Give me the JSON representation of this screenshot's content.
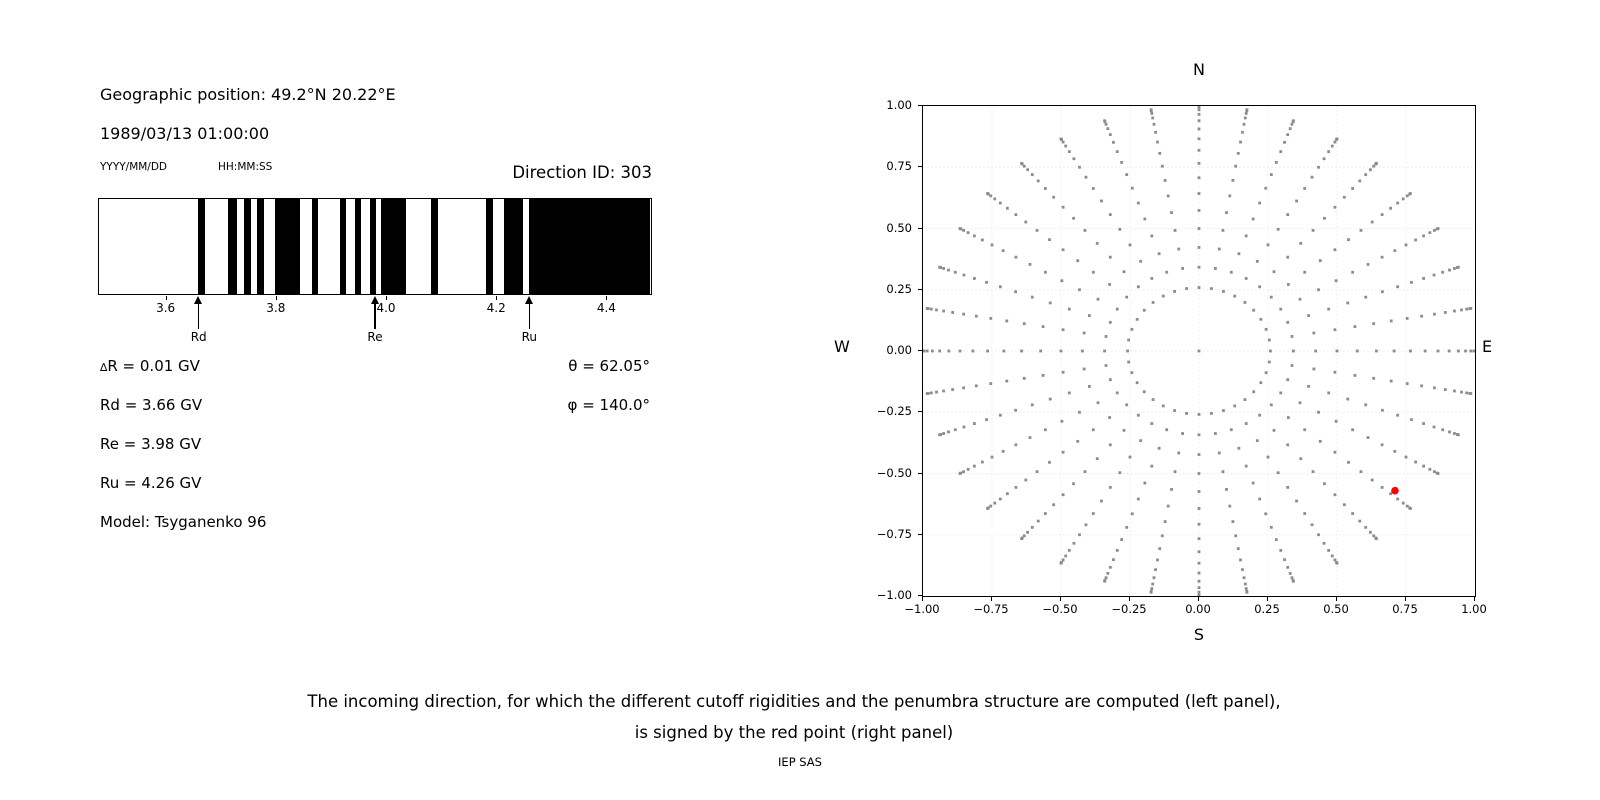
{
  "header": {
    "geographic_position": "Geographic position: 49.2°N 20.22°E",
    "datetime": "1989/03/13 01:00:00",
    "date_format_label": "YYYY/MM/DD",
    "time_format_label": "HH:MM:SS",
    "direction_id": "Direction ID: 303"
  },
  "info": {
    "delta_symbol": "∆",
    "delta_rest": "R = 0.01 GV",
    "rd": "Rd = 3.66 GV",
    "re": "Re = 3.98 GV",
    "ru": "Ru = 4.26 GV",
    "model": "Model: Tsyganenko 96",
    "theta": "θ = 62.05°",
    "phi": "φ = 140.0°"
  },
  "chart_data": [
    {
      "type": "bar",
      "name": "penumbra-structure",
      "description": "Cutoff rigidity penumbra: black bands = allowed rigidities, white = forbidden",
      "xlim": [
        3.48,
        4.48
      ],
      "x_unit": "GV",
      "bar_color": "#000000",
      "background_color": "#ffffff",
      "x_ticks": [
        {
          "v": 3.6,
          "label": "3.6"
        },
        {
          "v": 3.8,
          "label": "3.8"
        },
        {
          "v": 4.0,
          "label": "4.0"
        },
        {
          "v": 4.2,
          "label": "4.2"
        },
        {
          "v": 4.4,
          "label": "4.4"
        }
      ],
      "allowed_intervals_gv": [
        [
          3.66,
          3.672
        ],
        [
          3.715,
          3.73
        ],
        [
          3.744,
          3.756
        ],
        [
          3.767,
          3.779
        ],
        [
          3.8,
          3.845
        ],
        [
          3.866,
          3.878
        ],
        [
          3.917,
          3.929
        ],
        [
          3.944,
          3.956
        ],
        [
          3.971,
          3.983
        ],
        [
          3.992,
          4.038
        ],
        [
          4.082,
          4.095
        ],
        [
          4.182,
          4.195
        ],
        [
          4.215,
          4.25
        ],
        [
          4.26,
          4.48
        ]
      ],
      "arrows": [
        {
          "label": "Rd",
          "value_gv": 3.66
        },
        {
          "label": "Re",
          "value_gv": 3.98
        },
        {
          "label": "Ru",
          "value_gv": 4.26
        }
      ]
    },
    {
      "type": "scatter",
      "name": "incoming-directions-map",
      "description": "Grid of incoming directions: azimuth rays every 10°, radius = sin(zenith) for zenith 15°..90° step 5°, plus origin; red point marks direction ID 303",
      "xlim": [
        -1,
        1
      ],
      "ylim": [
        -1,
        1
      ],
      "grid": true,
      "grid_color": "#ebebeb",
      "point_color": "#8c8c8c",
      "compass": {
        "top": "N",
        "bottom": "S",
        "left": "W",
        "right": "E"
      },
      "x_ticks": [
        {
          "v": -1.0,
          "label": "−1.00"
        },
        {
          "v": -0.75,
          "label": "−0.75"
        },
        {
          "v": -0.5,
          "label": "−0.50"
        },
        {
          "v": -0.25,
          "label": "−0.25"
        },
        {
          "v": 0.0,
          "label": "0.00"
        },
        {
          "v": 0.25,
          "label": "0.25"
        },
        {
          "v": 0.5,
          "label": "0.50"
        },
        {
          "v": 0.75,
          "label": "0.75"
        },
        {
          "v": 1.0,
          "label": "1.00"
        }
      ],
      "y_ticks": [
        {
          "v": 1.0,
          "label": "1.00"
        },
        {
          "v": 0.75,
          "label": "0.75"
        },
        {
          "v": 0.5,
          "label": "0.50"
        },
        {
          "v": 0.25,
          "label": "0.25"
        },
        {
          "v": 0.0,
          "label": "0.00"
        },
        {
          "v": -0.25,
          "label": "−0.25"
        },
        {
          "v": -0.5,
          "label": "−0.50"
        },
        {
          "v": -0.75,
          "label": "−0.75"
        },
        {
          "v": -1.0,
          "label": "−1.00"
        }
      ],
      "azimuths_deg": [
        0,
        10,
        20,
        30,
        40,
        50,
        60,
        70,
        80,
        90,
        100,
        110,
        120,
        130,
        140,
        150,
        160,
        170,
        180,
        190,
        200,
        210,
        220,
        230,
        240,
        250,
        260,
        270,
        280,
        290,
        300,
        310,
        320,
        330,
        340,
        350
      ],
      "zenith_radii": [
        0.2588,
        0.342,
        0.4226,
        0.5,
        0.5736,
        0.6428,
        0.7071,
        0.766,
        0.8192,
        0.866,
        0.9063,
        0.9397,
        0.9659,
        0.9848,
        0.9962,
        1.0
      ],
      "center_point": true,
      "red_point": {
        "x": 0.71,
        "y": -0.57,
        "color": "#ff0000"
      }
    }
  ],
  "caption": {
    "line1": "The incoming direction, for which the different cutoff rigidities and the penumbra structure are computed (left panel),",
    "line2": "is signed by the red point (right panel)",
    "credit": "IEP SAS"
  }
}
